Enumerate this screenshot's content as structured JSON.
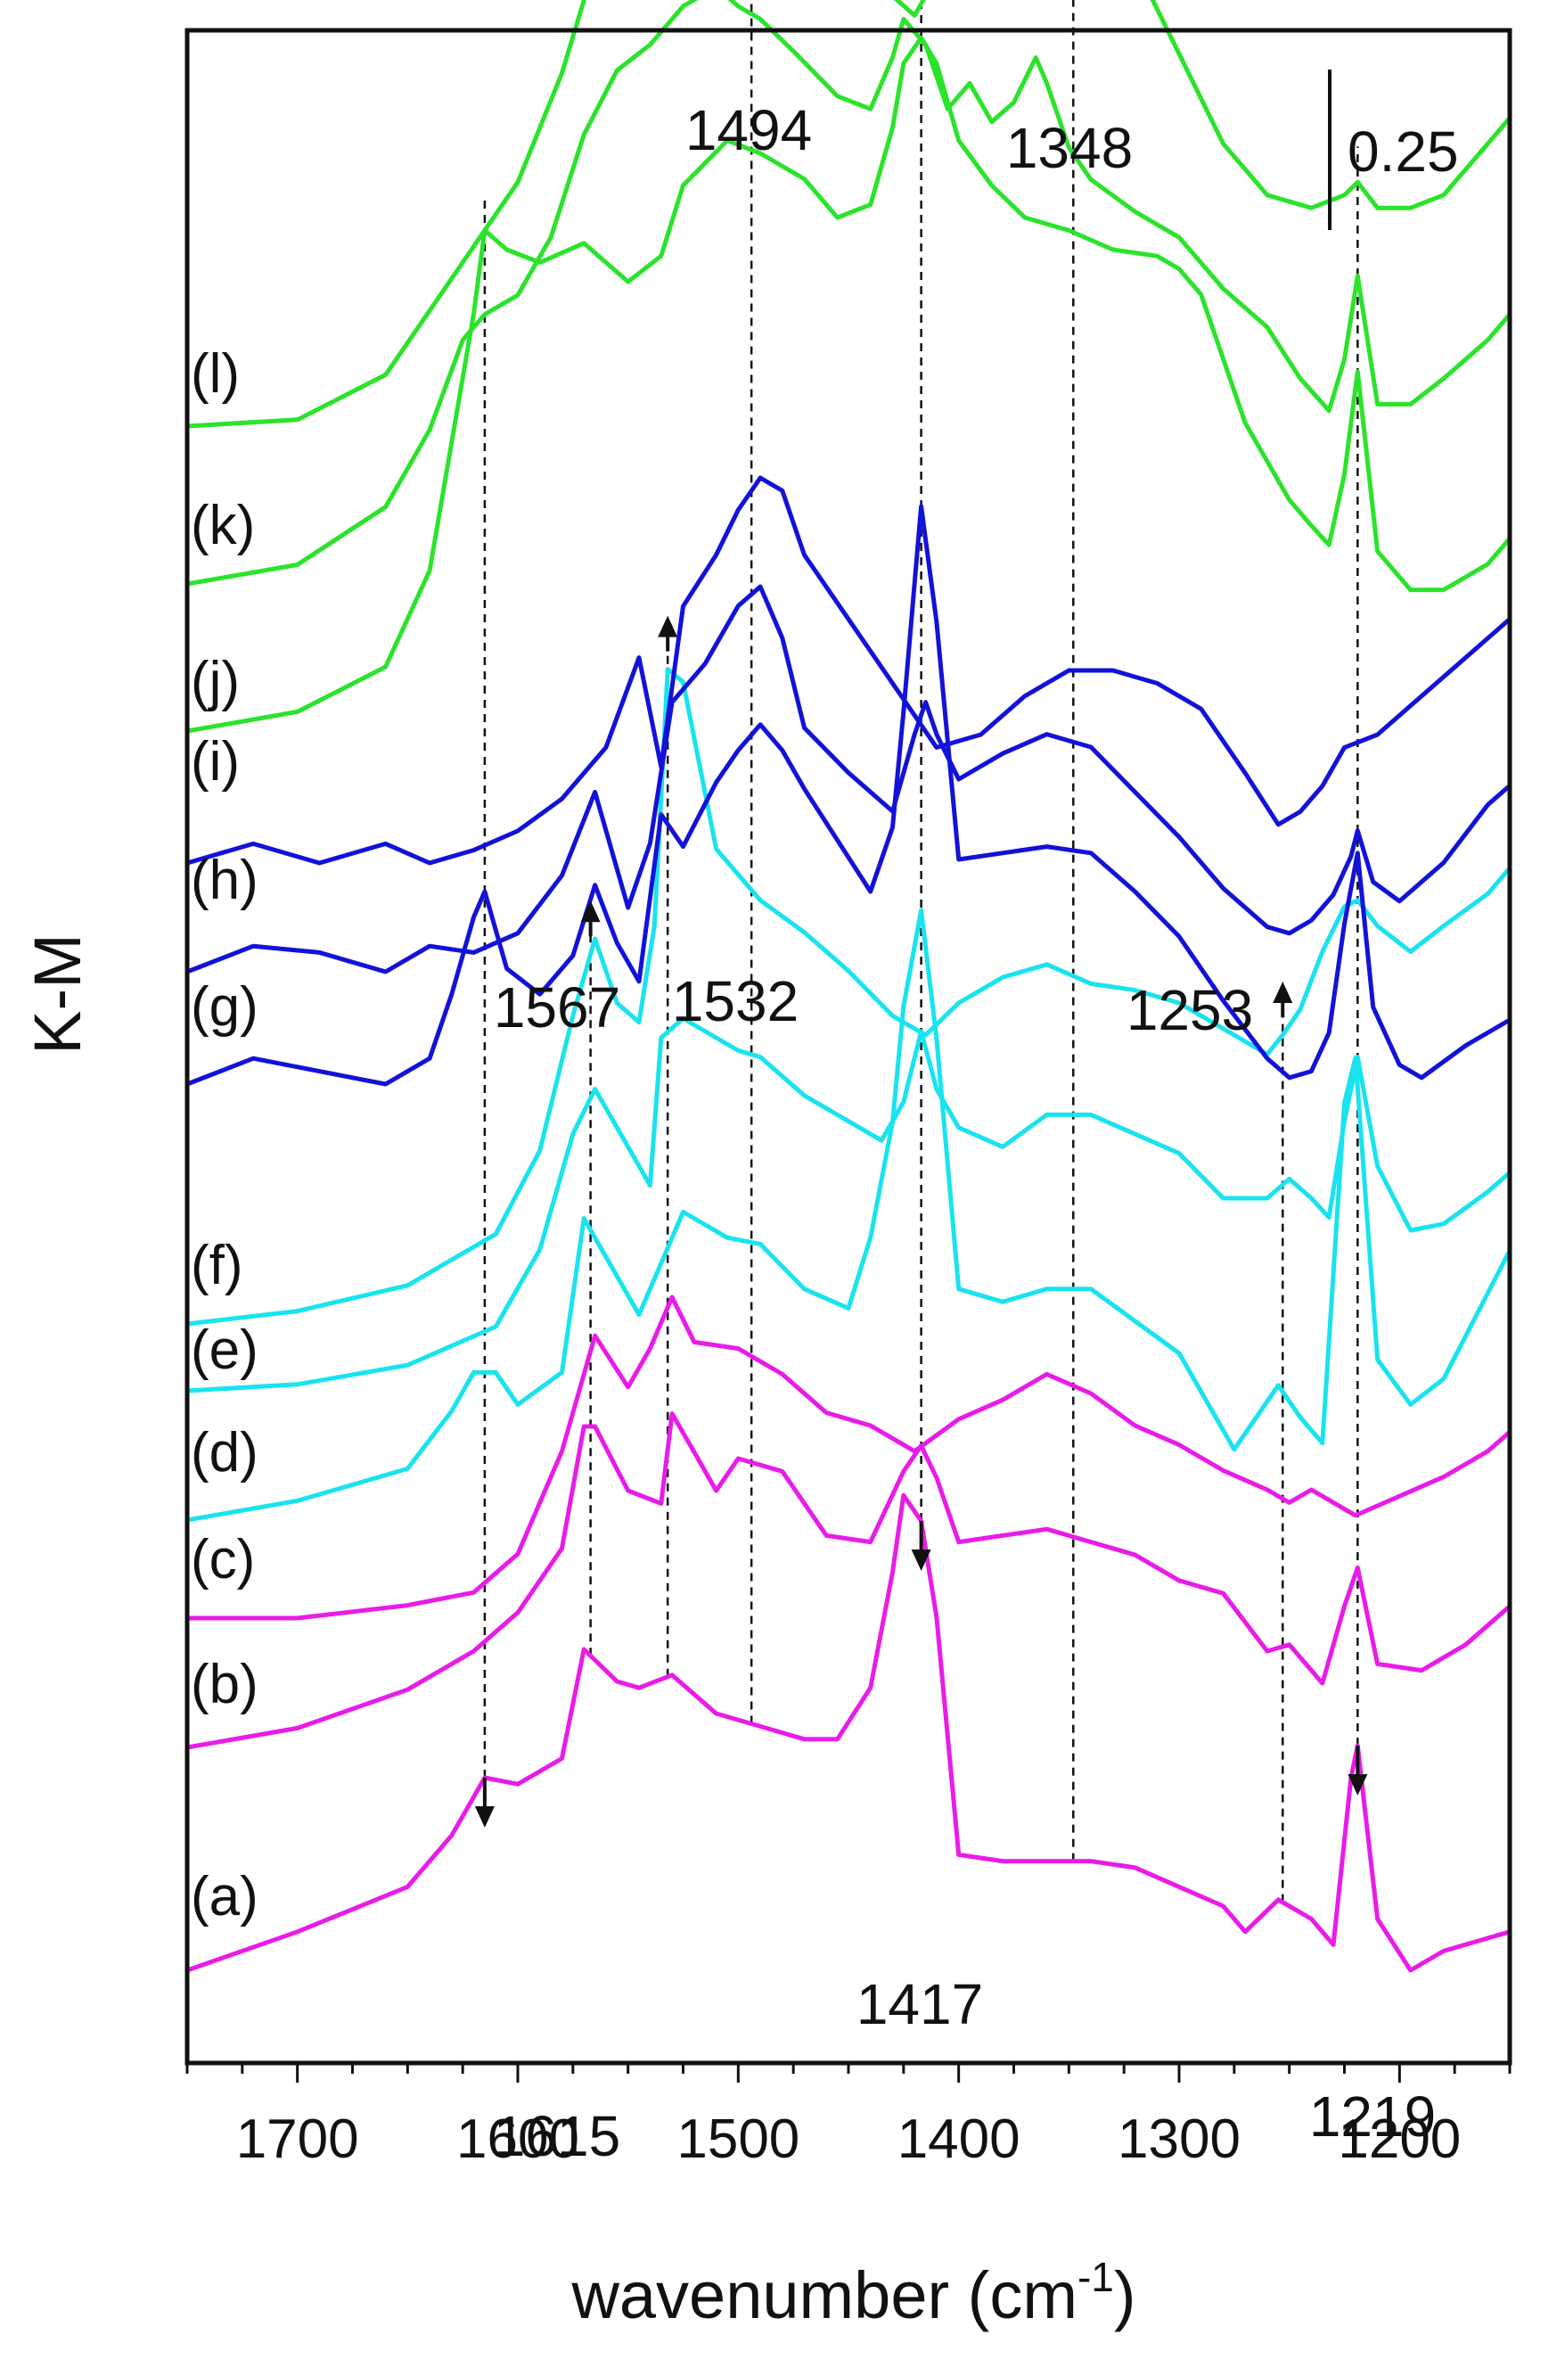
{
  "chart_data": {
    "type": "line",
    "xlabel": "wavenumber (cm",
    "xlabel_sup": "-1",
    "xlabel_close": ")",
    "ylabel": "K-M",
    "xlim": [
      1750,
      1150
    ],
    "x_reversed": true,
    "xticks": [
      1700,
      1600,
      1500,
      1400,
      1300,
      1200
    ],
    "scale_bar": {
      "label": "0.25",
      "value": 0.25
    },
    "colors": {
      "magenta": "#e81ce8",
      "cyan": "#19e3ee",
      "blue": "#1212d9",
      "green": "#2be32b"
    },
    "series": [
      {
        "label": "(a)",
        "color": "magenta",
        "x": [
          1750,
          1700,
          1650,
          1630,
          1615,
          1600,
          1580,
          1570,
          1555,
          1545,
          1530,
          1510,
          1490,
          1470,
          1455,
          1440,
          1430,
          1425,
          1417,
          1410,
          1400,
          1380,
          1360,
          1340,
          1320,
          1300,
          1280,
          1270,
          1255,
          1240,
          1230,
          1222,
          1219,
          1210,
          1195,
          1180,
          1150
        ],
        "y": [
          0.0,
          0.06,
          0.13,
          0.21,
          0.3,
          0.29,
          0.33,
          0.5,
          0.45,
          0.44,
          0.46,
          0.4,
          0.38,
          0.36,
          0.36,
          0.44,
          0.62,
          0.74,
          0.7,
          0.55,
          0.18,
          0.17,
          0.17,
          0.17,
          0.16,
          0.13,
          0.1,
          0.06,
          0.11,
          0.08,
          0.04,
          0.3,
          0.35,
          0.08,
          0.0,
          0.03,
          0.06
        ]
      },
      {
        "label": "(b)",
        "color": "magenta",
        "x": [
          1750,
          1700,
          1650,
          1620,
          1600,
          1580,
          1570,
          1565,
          1550,
          1535,
          1530,
          1520,
          1510,
          1500,
          1480,
          1460,
          1440,
          1425,
          1417,
          1410,
          1400,
          1380,
          1360,
          1340,
          1320,
          1300,
          1280,
          1260,
          1250,
          1235,
          1225,
          1219,
          1210,
          1190,
          1170,
          1150
        ],
        "y": [
          0.0,
          0.03,
          0.09,
          0.15,
          0.21,
          0.31,
          0.5,
          0.5,
          0.4,
          0.38,
          0.52,
          0.46,
          0.4,
          0.45,
          0.43,
          0.33,
          0.32,
          0.43,
          0.47,
          0.42,
          0.32,
          0.33,
          0.34,
          0.32,
          0.3,
          0.26,
          0.24,
          0.15,
          0.16,
          0.1,
          0.22,
          0.28,
          0.13,
          0.12,
          0.16,
          0.22
        ]
      },
      {
        "label": "(c)",
        "color": "magenta",
        "x": [
          1750,
          1700,
          1650,
          1620,
          1600,
          1580,
          1565,
          1550,
          1540,
          1530,
          1520,
          1500,
          1480,
          1460,
          1440,
          1420,
          1400,
          1380,
          1360,
          1340,
          1320,
          1300,
          1280,
          1260,
          1250,
          1240,
          1220,
          1200,
          1180,
          1160,
          1150
        ],
        "y": [
          0.0,
          0.0,
          0.02,
          0.04,
          0.1,
          0.26,
          0.44,
          0.36,
          0.42,
          0.5,
          0.43,
          0.42,
          0.38,
          0.32,
          0.3,
          0.26,
          0.31,
          0.34,
          0.38,
          0.35,
          0.3,
          0.27,
          0.23,
          0.2,
          0.18,
          0.2,
          0.16,
          0.19,
          0.22,
          0.26,
          0.29
        ]
      },
      {
        "label": "(d)",
        "color": "cyan",
        "x": [
          1750,
          1700,
          1650,
          1630,
          1620,
          1610,
          1600,
          1580,
          1570,
          1560,
          1545,
          1535,
          1525,
          1505,
          1490,
          1470,
          1450,
          1440,
          1430,
          1425,
          1417,
          1410,
          1400,
          1380,
          1360,
          1340,
          1320,
          1300,
          1275,
          1265,
          1255,
          1245,
          1235,
          1225,
          1220,
          1210,
          1195,
          1180,
          1150
        ],
        "y": [
          0.0,
          0.03,
          0.08,
          0.17,
          0.23,
          0.23,
          0.18,
          0.23,
          0.47,
          0.41,
          0.32,
          0.4,
          0.48,
          0.44,
          0.43,
          0.36,
          0.33,
          0.44,
          0.62,
          0.8,
          0.95,
          0.75,
          0.36,
          0.34,
          0.36,
          0.36,
          0.31,
          0.26,
          0.11,
          0.16,
          0.21,
          0.16,
          0.12,
          0.65,
          0.72,
          0.25,
          0.18,
          0.22,
          0.42
        ]
      },
      {
        "label": "(e)",
        "color": "cyan",
        "x": [
          1750,
          1700,
          1650,
          1610,
          1590,
          1575,
          1565,
          1550,
          1540,
          1535,
          1525,
          1510,
          1500,
          1490,
          1470,
          1450,
          1435,
          1425,
          1417,
          1410,
          1400,
          1380,
          1360,
          1340,
          1320,
          1300,
          1280,
          1260,
          1250,
          1240,
          1232,
          1225,
          1219,
          1210,
          1195,
          1180,
          1160,
          1150
        ],
        "y": [
          0.0,
          0.01,
          0.04,
          0.1,
          0.22,
          0.4,
          0.47,
          0.38,
          0.32,
          0.55,
          0.58,
          0.55,
          0.53,
          0.52,
          0.46,
          0.42,
          0.39,
          0.45,
          0.56,
          0.47,
          0.41,
          0.38,
          0.43,
          0.43,
          0.4,
          0.37,
          0.3,
          0.3,
          0.33,
          0.3,
          0.27,
          0.42,
          0.52,
          0.35,
          0.25,
          0.26,
          0.31,
          0.34
        ]
      },
      {
        "label": "(f)",
        "color": "cyan",
        "x": [
          1750,
          1700,
          1650,
          1610,
          1590,
          1575,
          1565,
          1555,
          1545,
          1538,
          1532,
          1525,
          1510,
          1490,
          1470,
          1450,
          1430,
          1415,
          1400,
          1380,
          1360,
          1340,
          1320,
          1300,
          1280,
          1260,
          1253,
          1245,
          1235,
          1225,
          1219,
          1210,
          1195,
          1180,
          1160,
          1150
        ],
        "y": [
          0.0,
          0.02,
          0.06,
          0.14,
          0.27,
          0.48,
          0.6,
          0.5,
          0.47,
          0.62,
          1.02,
          1.0,
          0.74,
          0.66,
          0.61,
          0.55,
          0.48,
          0.45,
          0.5,
          0.54,
          0.56,
          0.53,
          0.52,
          0.5,
          0.46,
          0.42,
          0.45,
          0.49,
          0.58,
          0.65,
          0.66,
          0.62,
          0.58,
          0.62,
          0.67,
          0.71
        ]
      },
      {
        "label": "(g)",
        "color": "blue",
        "x": [
          1750,
          1720,
          1690,
          1660,
          1640,
          1630,
          1620,
          1615,
          1605,
          1590,
          1575,
          1565,
          1555,
          1545,
          1535,
          1525,
          1510,
          1500,
          1490,
          1480,
          1470,
          1455,
          1440,
          1430,
          1425,
          1417,
          1410,
          1400,
          1380,
          1360,
          1340,
          1320,
          1300,
          1280,
          1260,
          1250,
          1240,
          1232,
          1225,
          1219,
          1212,
          1200,
          1190,
          1170,
          1150
        ],
        "y": [
          0.0,
          0.04,
          0.02,
          0.0,
          0.04,
          0.14,
          0.26,
          0.3,
          0.18,
          0.14,
          0.2,
          0.31,
          0.22,
          0.16,
          0.42,
          0.37,
          0.47,
          0.52,
          0.56,
          0.52,
          0.46,
          0.38,
          0.3,
          0.4,
          0.58,
          0.9,
          0.72,
          0.35,
          0.36,
          0.37,
          0.36,
          0.3,
          0.23,
          0.13,
          0.04,
          0.01,
          0.02,
          0.08,
          0.25,
          0.36,
          0.12,
          0.03,
          0.01,
          0.06,
          0.1
        ]
      },
      {
        "label": "(h)",
        "color": "blue",
        "x": [
          1750,
          1720,
          1690,
          1660,
          1640,
          1620,
          1600,
          1580,
          1565,
          1550,
          1540,
          1530,
          1515,
          1500,
          1490,
          1480,
          1470,
          1450,
          1430,
          1420,
          1415,
          1410,
          1400,
          1380,
          1360,
          1340,
          1320,
          1300,
          1280,
          1260,
          1250,
          1240,
          1230,
          1222,
          1219,
          1212,
          1200,
          1180,
          1160,
          1150
        ],
        "y": [
          0.0,
          0.04,
          0.03,
          0.0,
          0.04,
          0.03,
          0.06,
          0.15,
          0.28,
          0.1,
          0.2,
          0.42,
          0.48,
          0.57,
          0.6,
          0.52,
          0.38,
          0.31,
          0.25,
          0.37,
          0.42,
          0.37,
          0.3,
          0.34,
          0.37,
          0.35,
          0.28,
          0.21,
          0.13,
          0.07,
          0.06,
          0.08,
          0.12,
          0.18,
          0.22,
          0.14,
          0.11,
          0.17,
          0.26,
          0.29
        ]
      },
      {
        "label": "(i)",
        "color": "blue",
        "x": [
          1750,
          1720,
          1690,
          1660,
          1640,
          1620,
          1600,
          1580,
          1560,
          1545,
          1535,
          1525,
          1510,
          1500,
          1490,
          1480,
          1470,
          1450,
          1430,
          1410,
          1390,
          1370,
          1350,
          1330,
          1310,
          1290,
          1270,
          1255,
          1245,
          1235,
          1225,
          1210,
          1190,
          1170,
          1150
        ],
        "y": [
          0.0,
          0.03,
          0.0,
          0.03,
          0.0,
          0.02,
          0.05,
          0.1,
          0.18,
          0.32,
          0.15,
          0.4,
          0.48,
          0.55,
          0.6,
          0.58,
          0.48,
          0.38,
          0.28,
          0.18,
          0.2,
          0.26,
          0.3,
          0.3,
          0.28,
          0.24,
          0.14,
          0.06,
          0.08,
          0.12,
          0.18,
          0.2,
          0.26,
          0.32,
          0.38
        ]
      },
      {
        "label": "(j)",
        "color": "green",
        "x": [
          1750,
          1700,
          1660,
          1640,
          1630,
          1620,
          1615,
          1605,
          1590,
          1570,
          1550,
          1535,
          1525,
          1505,
          1490,
          1470,
          1455,
          1440,
          1430,
          1425,
          1417,
          1410,
          1400,
          1385,
          1370,
          1350,
          1330,
          1310,
          1300,
          1290,
          1270,
          1250,
          1240,
          1232,
          1225,
          1219,
          1210,
          1195,
          1180,
          1160,
          1150
        ],
        "y": [
          0.0,
          0.03,
          0.1,
          0.25,
          0.45,
          0.65,
          0.78,
          0.75,
          0.73,
          0.76,
          0.7,
          0.74,
          0.85,
          0.92,
          0.9,
          0.86,
          0.8,
          0.82,
          0.94,
          1.04,
          1.08,
          1.04,
          0.92,
          0.85,
          0.8,
          0.78,
          0.75,
          0.74,
          0.72,
          0.68,
          0.48,
          0.36,
          0.32,
          0.29,
          0.4,
          0.56,
          0.28,
          0.22,
          0.22,
          0.26,
          0.3
        ]
      },
      {
        "label": "(k)",
        "color": "green",
        "x": [
          1750,
          1700,
          1660,
          1640,
          1625,
          1615,
          1600,
          1585,
          1570,
          1555,
          1540,
          1525,
          1510,
          1500,
          1490,
          1475,
          1455,
          1440,
          1430,
          1425,
          1415,
          1405,
          1395,
          1385,
          1375,
          1365,
          1360,
          1350,
          1340,
          1320,
          1300,
          1280,
          1260,
          1245,
          1232,
          1225,
          1219,
          1210,
          1195,
          1180,
          1160,
          1150
        ],
        "y": [
          0.0,
          0.03,
          0.12,
          0.24,
          0.38,
          0.42,
          0.45,
          0.54,
          0.7,
          0.8,
          0.84,
          0.9,
          0.93,
          0.9,
          0.88,
          0.83,
          0.76,
          0.74,
          0.82,
          0.88,
          0.84,
          0.74,
          0.78,
          0.72,
          0.75,
          0.82,
          0.78,
          0.68,
          0.63,
          0.58,
          0.54,
          0.46,
          0.4,
          0.32,
          0.27,
          0.35,
          0.48,
          0.28,
          0.28,
          0.32,
          0.38,
          0.42
        ]
      },
      {
        "label": "(l)",
        "color": "green",
        "x": [
          1750,
          1700,
          1660,
          1640,
          1620,
          1600,
          1580,
          1565,
          1550,
          1540,
          1530,
          1515,
          1500,
          1490,
          1480,
          1470,
          1455,
          1440,
          1430,
          1420,
          1410,
          1400,
          1385,
          1370,
          1355,
          1340,
          1320,
          1300,
          1280,
          1260,
          1240,
          1225,
          1219,
          1210,
          1195,
          1180,
          1160,
          1150
        ],
        "y": [
          0.0,
          0.01,
          0.08,
          0.18,
          0.28,
          0.38,
          0.55,
          0.72,
          0.82,
          0.92,
          0.94,
          0.92,
          0.96,
          0.94,
          0.88,
          0.82,
          0.78,
          0.74,
          0.67,
          0.64,
          0.7,
          0.72,
          0.76,
          0.82,
          0.84,
          0.8,
          0.72,
          0.58,
          0.44,
          0.36,
          0.34,
          0.36,
          0.38,
          0.34,
          0.34,
          0.36,
          0.44,
          0.48
        ]
      }
    ],
    "peaks": [
      {
        "label": "1615",
        "x": 1615,
        "arrow": "down",
        "line_from": "(a)",
        "line_to": "(l)"
      },
      {
        "label": "1567",
        "x": 1567,
        "arrow": "up",
        "line_from": "(a)",
        "line_to": "(f)"
      },
      {
        "label": "1532",
        "x": 1532,
        "arrow": "up",
        "line_from": "(a)",
        "line_to": "(f)"
      },
      {
        "label": "1494",
        "x": 1494,
        "arrow": "up",
        "line_from": "(a)",
        "line_to": "(l)"
      },
      {
        "label": "1417",
        "x": 1417,
        "arrow": "down",
        "line_from": "(a)",
        "line_to": "(l)"
      },
      {
        "label": "1348",
        "x": 1348,
        "arrow": "up",
        "line_from": "(a)",
        "line_to": "(l)"
      },
      {
        "label": "1253",
        "x": 1253,
        "arrow": "up",
        "line_from": "(a)",
        "line_to": "(f)"
      },
      {
        "label": "1219",
        "x": 1219,
        "arrow": "down",
        "line_from": "(a)",
        "line_to": "(l)"
      }
    ]
  }
}
